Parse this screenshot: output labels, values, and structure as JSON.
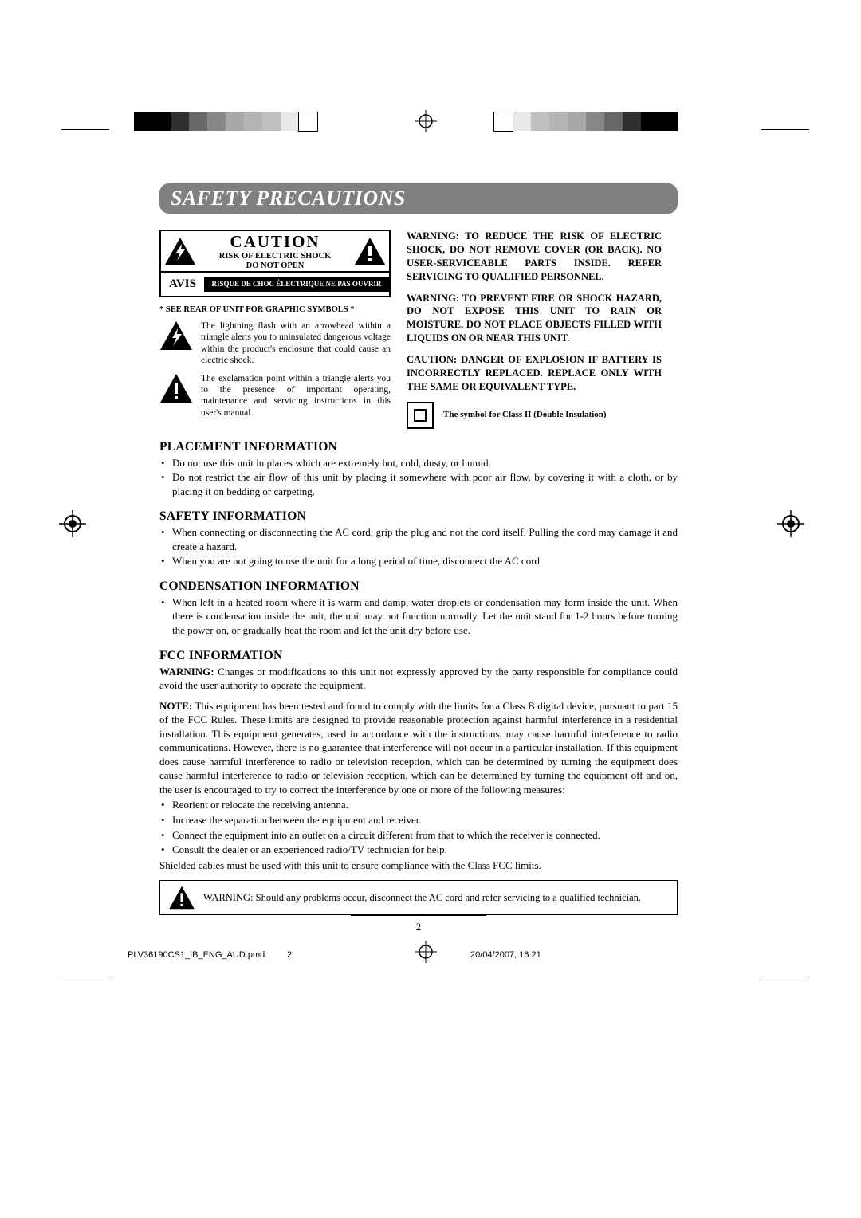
{
  "reg_colors_left": [
    "#000000",
    "#000000",
    "#303030",
    "#686868",
    "#888888",
    "#a8a8a8",
    "#b4b4b4",
    "#c0c0c0",
    "#e8e8e8",
    "#ffffff"
  ],
  "reg_colors_right": [
    "#ffffff",
    "#e8e8e8",
    "#c0c0c0",
    "#b4b4b4",
    "#a8a8a8",
    "#888888",
    "#686868",
    "#303030",
    "#000000",
    "#000000"
  ],
  "title": "SAFETY PRECAUTIONS",
  "caution": {
    "word": "CAUTION",
    "sub1": "RISK OF ELECTRIC SHOCK",
    "sub2": "DO NOT OPEN",
    "avis": "AVIS",
    "avis_text": "RISQUE DE CHOC ÉLECTRIQUE NE PAS OUVRIR"
  },
  "rear_note": "* SEE REAR OF UNIT FOR  GRAPHIC SYMBOLS *",
  "lightning_text": "The lightning flash with an arrowhead within a triangle alerts you to uninsulated dangerous voltage within the product's enclosure that could cause an electric shock.",
  "excl_text": "The exclamation point within a triangle alerts you to the presence of important operating, maintenance  and servicing instructions in this user's manual.",
  "warn1": "WARNING: TO REDUCE THE RISK OF ELECTRIC SHOCK, DO NOT REMOVE COVER (OR BACK). NO USER-SERVICEABLE PARTS INSIDE. REFER SERVICING TO QUALIFIED PERSONNEL.",
  "warn2": "WARNING:  TO PREVENT FIRE OR SHOCK HAZARD, DO NOT EXPOSE THIS UNIT TO RAIN OR MOISTURE. DO NOT PLACE OBJECTS FILLED WITH LIQUIDS ON OR NEAR THIS UNIT.",
  "warn3": "CAUTION: DANGER OF EXPLOSION IF BATTERY IS INCORRECTLY REPLACED. REPLACE ONLY WITH THE SAME OR EQUIVALENT TYPE.",
  "class2": "The symbol for Class II (Double Insulation)",
  "placement": {
    "heading": "PLACEMENT INFORMATION",
    "items": [
      "Do not use this unit in places which are extremely hot, cold, dusty, or humid.",
      "Do not restrict the air flow of this unit by placing it somewhere with poor air flow, by covering it with a cloth, or by placing it on bedding or carpeting."
    ]
  },
  "safety": {
    "heading": "SAFETY INFORMATION",
    "items": [
      "When connecting or disconnecting the AC cord, grip the plug and not the cord itself. Pulling the cord may damage it and create a hazard.",
      "When you are not going to use the unit for a long period of time, disconnect the AC cord."
    ]
  },
  "cond": {
    "heading": "CONDENSATION INFORMATION",
    "items": [
      "When left in a heated room where it is warm and damp, water droplets or condensation may form inside the unit. When there is condensation inside the unit, the unit may not function normally. Let the unit stand for 1-2 hours before turning the power on, or gradually heat the room and let the unit dry before use."
    ]
  },
  "fcc": {
    "heading": "FCC INFORMATION",
    "p1_label": "WARNING:",
    "p1": " Changes or modifications to this unit not expressly approved by the party responsible for compliance could avoid the user authority to operate the equipment.",
    "p2_label": "NOTE:",
    "p2": " This equipment has been tested and found to comply with the limits for a Class B digital device, pursuant to part 15 of the FCC Rules. These limits are designed to provide reasonable protection against harmful interference in a residential installation. This equipment generates, used in accordance with the instructions, may cause harmful interference to radio communications. However, there is no guarantee that interference will not occur in a particular installation. If this equipment does cause harmful  interference to radio or television reception, which can be determined by turning the equipment does cause harmful interference to radio or television reception, which can be determined by turning the equipment off and on, the user is encouraged to try to correct the interference by one or more of the following measures:",
    "items": [
      "Reorient or relocate the receiving antenna.",
      "Increase the separation between the equipment and receiver.",
      "Connect the equipment into an outlet on a circuit different from that to which the receiver is connected.",
      "Consult the dealer or an experienced radio/TV technician for help."
    ],
    "shielded": "Shielded cables must be used with this unit to ensure compliance with the Class FCC limits."
  },
  "box_label": "WARNING:",
  "box_text": " Should any problems occur, disconnect the AC cord and refer servicing to a qualified technician.",
  "page_num": "2",
  "footer": {
    "file": "PLV36190CS1_IB_ENG_AUD.pmd",
    "pg": "2",
    "date": "20/04/2007, 16:21"
  }
}
